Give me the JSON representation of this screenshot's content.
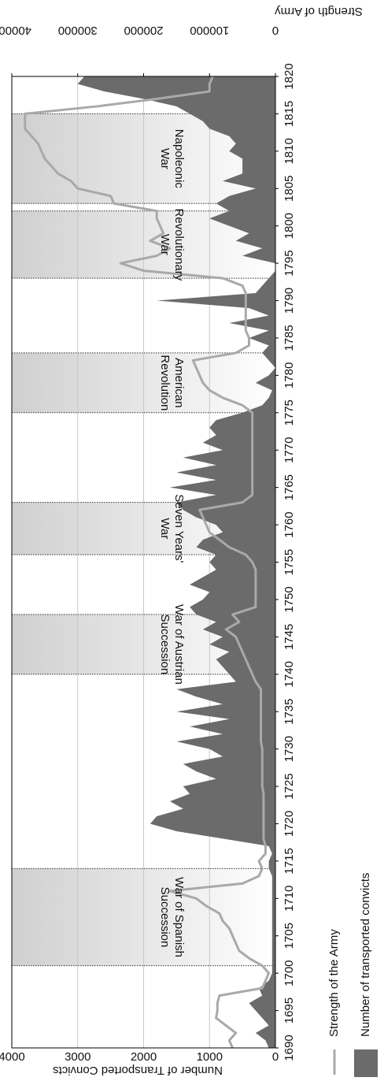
{
  "chart_data": {
    "type": "area-line",
    "y_label": "Number of Transported Convicts",
    "y2_label": "Strength of Army",
    "xlim": [
      1690,
      1820
    ],
    "xticks": [
      1690,
      1695,
      1700,
      1705,
      1710,
      1715,
      1720,
      1725,
      1730,
      1735,
      1740,
      1745,
      1750,
      1755,
      1760,
      1765,
      1770,
      1775,
      1780,
      1785,
      1790,
      1795,
      1800,
      1805,
      1810,
      1815,
      1820
    ],
    "ylim": [
      0,
      4000
    ],
    "yticks": [
      0,
      1000,
      2000,
      3000,
      4000
    ],
    "y2lim": [
      0,
      400000
    ],
    "y2ticks": [
      0,
      100000,
      200000,
      300000,
      400000
    ],
    "grid": true,
    "x": [
      1690,
      1691,
      1692,
      1693,
      1694,
      1695,
      1696,
      1697,
      1698,
      1699,
      1700,
      1701,
      1702,
      1703,
      1704,
      1705,
      1706,
      1707,
      1708,
      1709,
      1710,
      1711,
      1712,
      1713,
      1714,
      1715,
      1716,
      1717,
      1718,
      1719,
      1720,
      1721,
      1722,
      1723,
      1724,
      1725,
      1726,
      1727,
      1728,
      1729,
      1730,
      1731,
      1732,
      1733,
      1734,
      1735,
      1736,
      1737,
      1738,
      1739,
      1740,
      1741,
      1742,
      1743,
      1744,
      1745,
      1746,
      1747,
      1748,
      1749,
      1750,
      1751,
      1752,
      1753,
      1754,
      1755,
      1756,
      1757,
      1758,
      1759,
      1760,
      1761,
      1762,
      1763,
      1764,
      1765,
      1766,
      1767,
      1768,
      1769,
      1770,
      1771,
      1772,
      1773,
      1774,
      1775,
      1776,
      1777,
      1778,
      1779,
      1780,
      1781,
      1782,
      1783,
      1784,
      1785,
      1786,
      1787,
      1788,
      1789,
      1790,
      1791,
      1792,
      1793,
      1794,
      1795,
      1796,
      1797,
      1798,
      1799,
      1800,
      1801,
      1802,
      1803,
      1804,
      1805,
      1806,
      1807,
      1808,
      1809,
      1810,
      1811,
      1812,
      1813,
      1814,
      1815,
      1816,
      1817,
      1818,
      1819,
      1820
    ],
    "series": [
      {
        "name": "Number of transported convicts",
        "color": "#6b6b6b",
        "kind": "area",
        "values": [
          100,
          150,
          300,
          100,
          200,
          300,
          400,
          200,
          250,
          100,
          50,
          50,
          50,
          50,
          50,
          50,
          50,
          50,
          50,
          50,
          50,
          50,
          50,
          50,
          100,
          100,
          50,
          100,
          800,
          1500,
          1900,
          1800,
          1400,
          1600,
          1300,
          1400,
          900,
          1200,
          1400,
          800,
          1000,
          1500,
          800,
          1300,
          700,
          1500,
          800,
          1200,
          1500,
          600,
          700,
          800,
          900,
          700,
          1000,
          800,
          1100,
          900,
          1200,
          1300,
          1100,
          1000,
          1300,
          1100,
          900,
          1000,
          900,
          1200,
          1100,
          800,
          900,
          1200,
          1400,
          1500,
          900,
          1600,
          900,
          1500,
          900,
          1400,
          800,
          1100,
          900,
          1000,
          900,
          500,
          200,
          100,
          50,
          300,
          100,
          0,
          100,
          200,
          100,
          400,
          100,
          700,
          100,
          400,
          1800,
          300,
          200,
          100,
          0,
          0,
          500,
          200,
          600,
          400,
          700,
          1000,
          700,
          900,
          700,
          300,
          800,
          500,
          500,
          500,
          700,
          600,
          700,
          1000,
          1100,
          1300,
          1500,
          2000,
          2600,
          3000,
          2900
        ]
      },
      {
        "name": "Strength of the Army",
        "color": "#a9a9a9",
        "kind": "line",
        "axis": "y2",
        "values": [
          65000,
          70000,
          60000,
          75000,
          90000,
          88000,
          88000,
          85000,
          20000,
          15000,
          10000,
          20000,
          40000,
          55000,
          60000,
          65000,
          70000,
          80000,
          85000,
          105000,
          120000,
          160000,
          50000,
          25000,
          20000,
          25000,
          15000,
          15000,
          18000,
          18000,
          18000,
          18000,
          18000,
          18000,
          18000,
          20000,
          20000,
          20000,
          20000,
          20000,
          20000,
          22000,
          22000,
          22000,
          22000,
          22000,
          22000,
          22000,
          22000,
          30000,
          35000,
          40000,
          45000,
          50000,
          55000,
          60000,
          75000,
          55000,
          65000,
          30000,
          30000,
          30000,
          30000,
          30000,
          30000,
          35000,
          45000,
          70000,
          85000,
          100000,
          105000,
          110000,
          115000,
          50000,
          35000,
          35000,
          35000,
          35000,
          35000,
          35000,
          35000,
          35000,
          35000,
          35000,
          35000,
          35000,
          50000,
          80000,
          100000,
          110000,
          115000,
          120000,
          125000,
          60000,
          40000,
          40000,
          45000,
          45000,
          45000,
          45000,
          45000,
          45000,
          50000,
          80000,
          200000,
          235000,
          180000,
          160000,
          190000,
          170000,
          175000,
          180000,
          180000,
          245000,
          250000,
          300000,
          310000,
          330000,
          340000,
          350000,
          355000,
          360000,
          370000,
          380000,
          380000,
          380000,
          270000,
          180000,
          100000,
          100000,
          95000
        ]
      }
    ],
    "wars": [
      {
        "label": [
          "War of Spanish",
          "Succession"
        ],
        "start": 1701,
        "end": 1714
      },
      {
        "label": [
          "War of Austrian",
          "Succession"
        ],
        "start": 1740,
        "end": 1748
      },
      {
        "label": [
          "Seven Years'",
          "War"
        ],
        "start": 1756,
        "end": 1763
      },
      {
        "label": [
          "American",
          "Revolution"
        ],
        "start": 1775,
        "end": 1783
      },
      {
        "label": [
          "Revolutionary",
          "War"
        ],
        "start": 1793,
        "end": 1802
      },
      {
        "label": [
          "Napoleonic",
          "War"
        ],
        "start": 1803,
        "end": 1815
      }
    ]
  }
}
